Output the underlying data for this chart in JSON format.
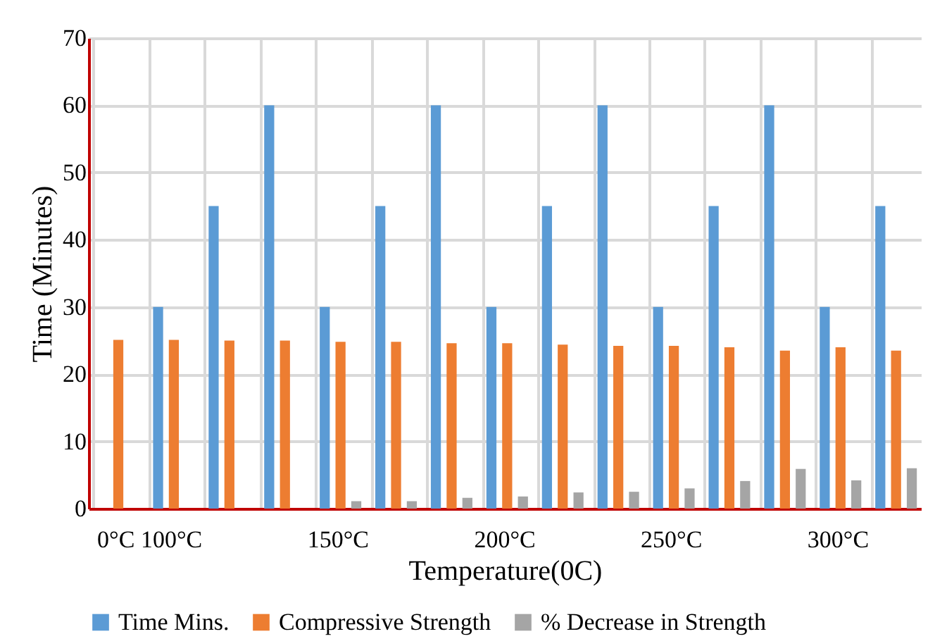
{
  "chart_data": {
    "type": "bar",
    "xlabel": "Temperature(0C)",
    "ylabel": "Time (Minutes)",
    "categories": [
      "0°C",
      "100°C",
      null,
      null,
      "150°C",
      null,
      null,
      "200°C",
      null,
      null,
      "250°C",
      null,
      null,
      "300°C",
      null
    ],
    "series": [
      {
        "name": "Time Mins.",
        "color": "#5b9bd5",
        "values": [
          0,
          30,
          45,
          60,
          30,
          45,
          60,
          30,
          45,
          60,
          30,
          45,
          60,
          30,
          45
        ]
      },
      {
        "name": "Compressive Strength",
        "color": "#ed7d31",
        "values": [
          25.1,
          25.1,
          25.0,
          25.0,
          24.8,
          24.8,
          24.6,
          24.6,
          24.4,
          24.2,
          24.2,
          24.0,
          23.5,
          24.0,
          23.5
        ]
      },
      {
        "name": "% Decrease in Strength",
        "color": "#a5a5a5",
        "values": [
          0,
          null,
          null,
          null,
          1.1,
          1.1,
          1.6,
          1.8,
          2.4,
          2.5,
          3.0,
          4.1,
          5.9,
          4.2,
          6.0
        ]
      }
    ],
    "ylim": [
      0,
      70
    ],
    "yticks": [
      0,
      10,
      20,
      30,
      40,
      50,
      60,
      70
    ],
    "grid": true,
    "legend": "bottom"
  }
}
